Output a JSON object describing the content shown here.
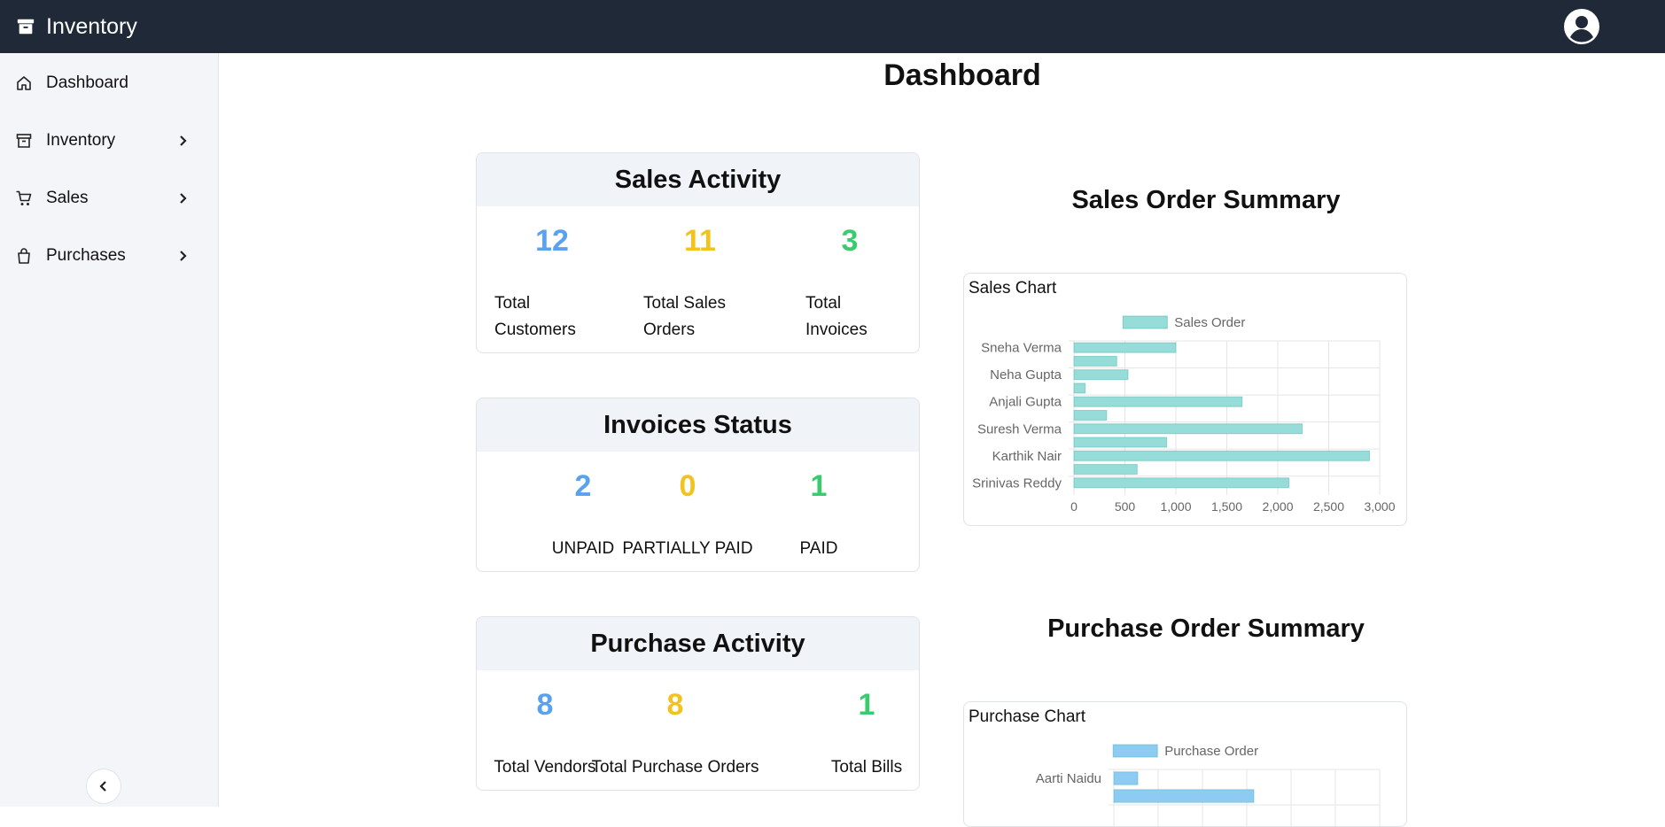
{
  "header": {
    "title": "Inventory"
  },
  "sidebar": {
    "items": [
      {
        "label": "Dashboard",
        "icon": "home-icon"
      },
      {
        "label": "Inventory",
        "icon": "archive-icon"
      },
      {
        "label": "Sales",
        "icon": "cart-icon"
      },
      {
        "label": "Purchases",
        "icon": "bag-icon"
      }
    ]
  },
  "page": {
    "title": "Dashboard"
  },
  "sales_activity": {
    "title": "Sales Activity",
    "stats": [
      {
        "value": "12",
        "label_line1": "Total",
        "label_line2": "Customers"
      },
      {
        "value": "11",
        "label_line1": "Total Sales",
        "label_line2": "Orders"
      },
      {
        "value": "3",
        "label_line1": "Total",
        "label_line2": "Invoices"
      }
    ]
  },
  "invoices_status": {
    "title": "Invoices Status",
    "stats": [
      {
        "value": "2",
        "label": "UNPAID"
      },
      {
        "value": "0",
        "label": "PARTIALLY PAID"
      },
      {
        "value": "1",
        "label": "PAID"
      }
    ]
  },
  "purchase_activity": {
    "title": "Purchase Activity",
    "stats": [
      {
        "value": "8",
        "label": "Total Vendors"
      },
      {
        "value": "8",
        "label": "Total Purchase Orders"
      },
      {
        "value": "1",
        "label": "Total Bills"
      }
    ]
  },
  "sales_summary": {
    "title": "Sales Order Summary",
    "chart_label": "Sales Chart"
  },
  "purchase_summary": {
    "title": "Purchase Order Summary",
    "chart_label": "Purchase Chart"
  },
  "colors": {
    "blue": "#5aa2ee",
    "yellow": "#f2c31c",
    "green": "#38cc6e",
    "sales_bar": "#96dcd8",
    "purchase_bar": "#8ecbf3"
  },
  "chart_data": [
    {
      "type": "bar",
      "orientation": "horizontal",
      "legend": "Sales Order",
      "legend_position": "top",
      "tick_labels": [
        "Sneha Verma",
        "Neha Gupta",
        "Anjali Gupta",
        "Suresh Verma",
        "Karthik Nair",
        "Srinivas Reddy"
      ],
      "x_ticks": [
        "0",
        "500",
        "1,000",
        "1,500",
        "2,000",
        "2,500",
        "3,000"
      ],
      "xlim": [
        0,
        3000
      ],
      "values": [
        1000,
        420,
        530,
        110,
        1650,
        320,
        2240,
        910,
        2900,
        620,
        2110
      ]
    },
    {
      "type": "bar",
      "orientation": "horizontal",
      "legend": "Purchase Order",
      "legend_position": "top",
      "tick_labels": [
        "Aarti Naidu"
      ],
      "values": [
        270,
        1580
      ]
    }
  ]
}
